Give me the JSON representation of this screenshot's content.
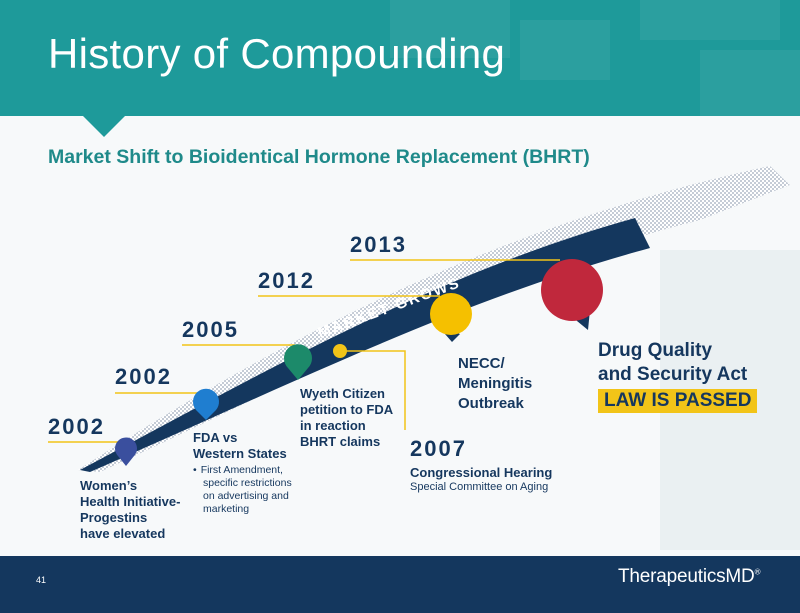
{
  "slide": {
    "title": "History of Compounding",
    "subtitle": "Market Shift to Bioidentical Hormone Replacement (BHRT)",
    "arrow_label": "MARKET GROWS",
    "page_number": "41",
    "logo": "TherapeuticsMD",
    "logo_mark": "®"
  },
  "timeline": [
    {
      "year": "2002",
      "pin_color": "#3a4f9e",
      "label": [
        "Women’s",
        "Health Initiative-",
        "Progestins",
        "have elevated"
      ]
    },
    {
      "year": "2002",
      "pin_color": "#1f7ed0",
      "label": [
        "FDA vs",
        "Western States"
      ],
      "bullet": [
        "First Amendment,",
        "specific restrictions",
        "on advertising and",
        "marketing"
      ]
    },
    {
      "year": "2005",
      "pin_color": "#1c8a6a",
      "label": [
        "Wyeth Citizen",
        "petition to FDA",
        "in reaction",
        "BHRT claims"
      ]
    },
    {
      "year": "2007",
      "pin_color": "#f2c418",
      "label": [
        "Congressional Hearing"
      ],
      "detail": "Special Committee on Aging"
    },
    {
      "year": "2012",
      "pin_color": "#f5c000",
      "label": [
        "NECC/",
        "Meningitis",
        "Outbreak"
      ]
    },
    {
      "year": "2013",
      "pin_color": "#c0283c",
      "label": [
        "Drug Quality",
        "and Security Act"
      ],
      "highlight": "LAW IS PASSED"
    }
  ],
  "colors": {
    "teal": "#1e9a9a",
    "navy": "#14375e",
    "gold": "#f2c418",
    "red": "#c0283c"
  }
}
